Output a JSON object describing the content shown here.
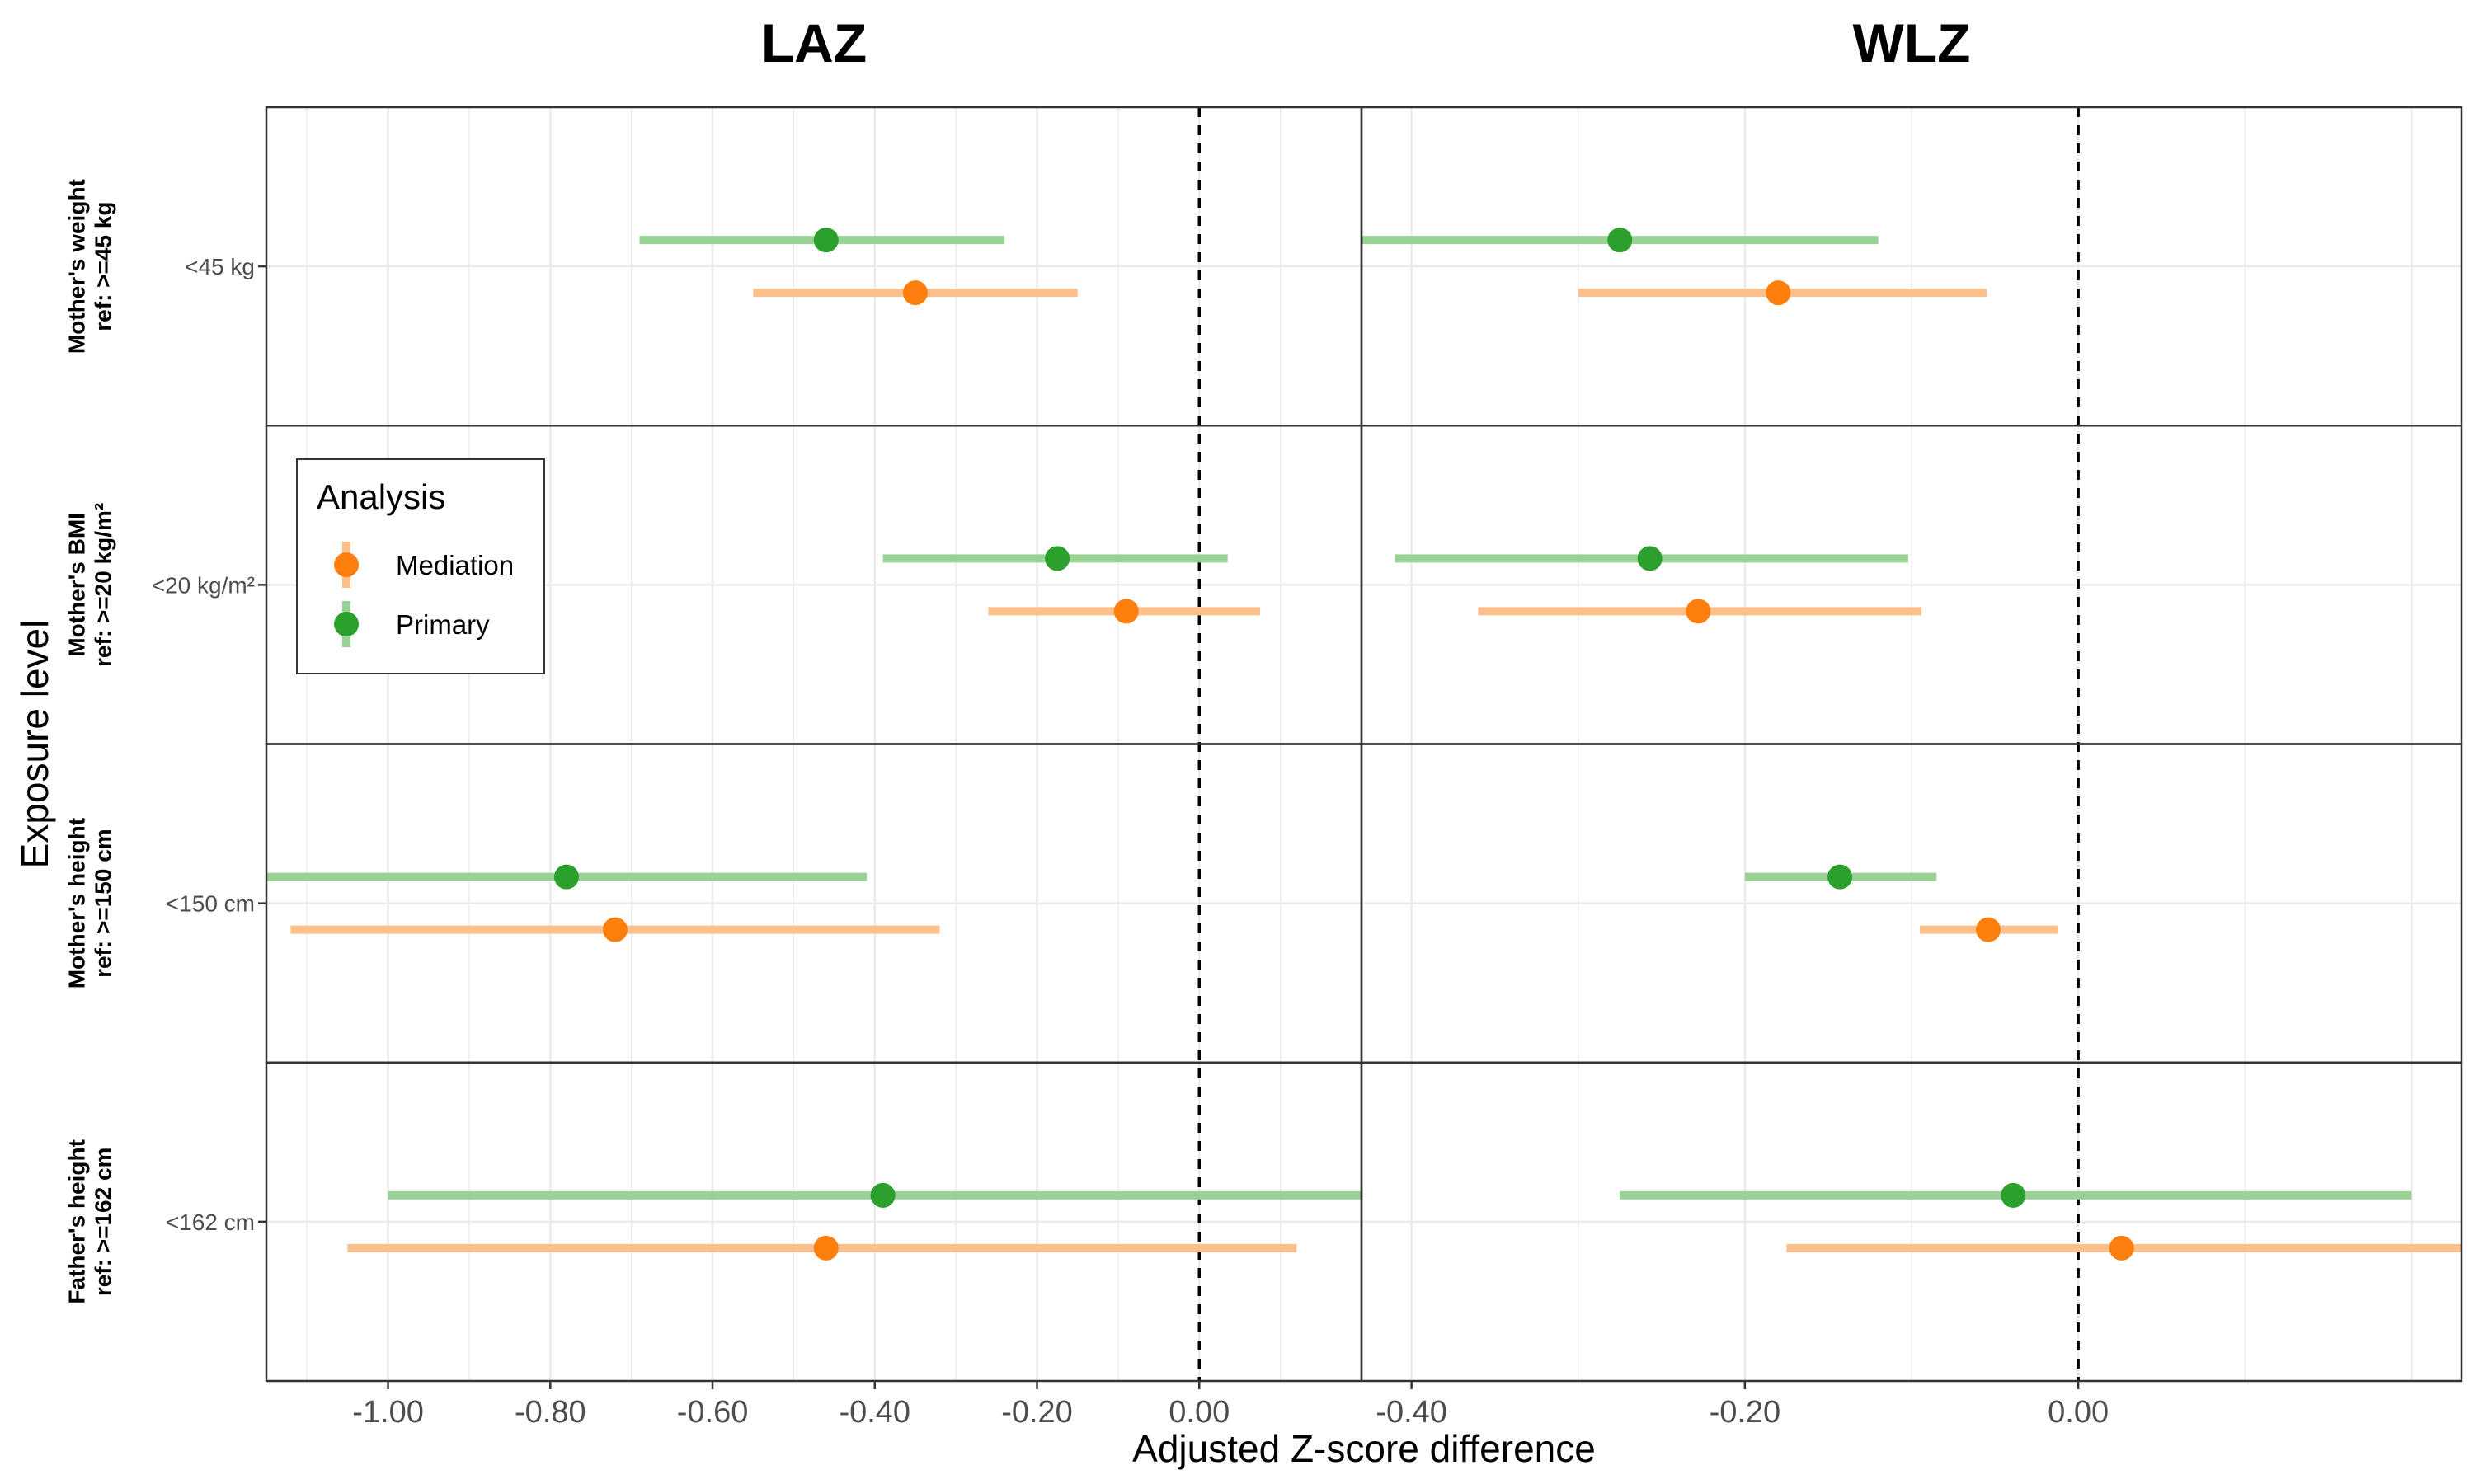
{
  "chart_data": {
    "type": "scatter",
    "subtype": "forest-plot-faceted",
    "xlabel": "Adjusted Z-score difference",
    "ylabel": "Exposure level",
    "columns": [
      "LAZ",
      "WLZ"
    ],
    "x_ranges": {
      "LAZ": [
        -1.15,
        0.2
      ],
      "WLZ": [
        -0.43,
        0.23
      ]
    },
    "x_ticks": {
      "LAZ": [
        {
          "value": -1.0,
          "label": "-1.00"
        },
        {
          "value": -0.8,
          "label": "-0.80"
        },
        {
          "value": -0.6,
          "label": "-0.60"
        },
        {
          "value": -0.4,
          "label": "-0.40"
        },
        {
          "value": -0.2,
          "label": "-0.20"
        },
        {
          "value": 0.0,
          "label": "0.00"
        }
      ],
      "WLZ": [
        {
          "value": -0.4,
          "label": "-0.40"
        },
        {
          "value": -0.2,
          "label": "-0.20"
        },
        {
          "value": 0.0,
          "label": "0.00"
        }
      ]
    },
    "reference_line": 0,
    "grid": true,
    "legend": {
      "title": "Analysis",
      "position": "inside-left",
      "entries": [
        {
          "name": "Mediation",
          "color": "#FF7F0E"
        },
        {
          "name": "Primary",
          "color": "#2CA02C"
        }
      ]
    },
    "ci_colors": {
      "Mediation": "#FDC08A",
      "Primary": "#98D294"
    },
    "rows": [
      {
        "facet_line1": "Mother's weight",
        "facet_line2": "ref: >=45 kg",
        "level": "<45 kg",
        "LAZ": {
          "Primary": {
            "est": -0.46,
            "lo": -0.69,
            "hi": -0.24
          },
          "Mediation": {
            "est": -0.35,
            "lo": -0.55,
            "hi": -0.15
          }
        },
        "WLZ": {
          "Primary": {
            "est": -0.275,
            "lo": -0.43,
            "hi": -0.12
          },
          "Mediation": {
            "est": -0.18,
            "lo": -0.3,
            "hi": -0.055
          }
        }
      },
      {
        "facet_line1": "Mother's BMI",
        "facet_line2": "ref: >=20 kg/m²",
        "level": "<20 kg/m²",
        "LAZ": {
          "Primary": {
            "est": -0.175,
            "lo": -0.39,
            "hi": 0.035
          },
          "Mediation": {
            "est": -0.09,
            "lo": -0.26,
            "hi": 0.075
          }
        },
        "WLZ": {
          "Primary": {
            "est": -0.257,
            "lo": -0.41,
            "hi": -0.102
          },
          "Mediation": {
            "est": -0.228,
            "lo": -0.36,
            "hi": -0.094
          }
        }
      },
      {
        "facet_line1": "Mother's height",
        "facet_line2": "ref: >=150 cm",
        "level": "<150 cm",
        "LAZ": {
          "Primary": {
            "est": -0.78,
            "lo": -1.15,
            "hi": -0.41
          },
          "Mediation": {
            "est": -0.72,
            "lo": -1.12,
            "hi": -0.32
          }
        },
        "WLZ": {
          "Primary": {
            "est": -0.143,
            "lo": -0.2,
            "hi": -0.085
          },
          "Mediation": {
            "est": -0.054,
            "lo": -0.095,
            "hi": -0.012
          }
        }
      },
      {
        "facet_line1": "Father's height",
        "facet_line2": "ref: >=162 cm",
        "level": "<162 cm",
        "LAZ": {
          "Primary": {
            "est": -0.39,
            "lo": -1.0,
            "hi": 0.2
          },
          "Mediation": {
            "est": -0.46,
            "lo": -1.05,
            "hi": 0.12
          }
        },
        "WLZ": {
          "Primary": {
            "est": -0.039,
            "lo": -0.275,
            "hi": 0.2
          },
          "Mediation": {
            "est": 0.026,
            "lo": -0.175,
            "hi": 0.23
          }
        }
      }
    ]
  }
}
